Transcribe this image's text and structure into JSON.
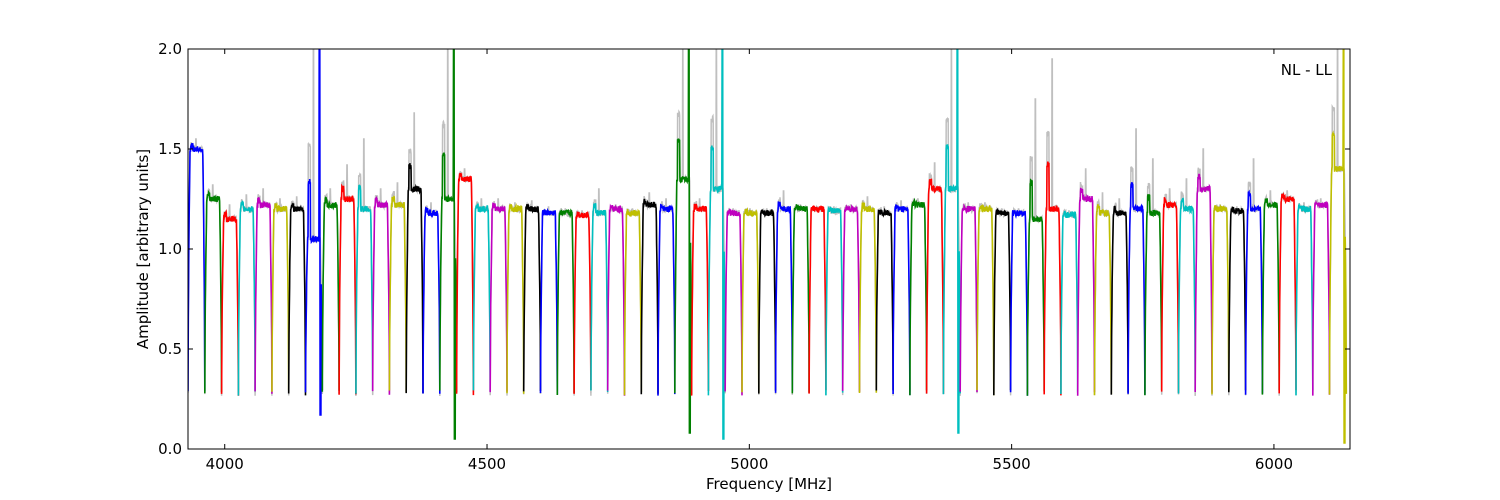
{
  "chart_data": {
    "type": "line",
    "title": "",
    "annotation": "NL - LL",
    "xlabel": "Frequency [MHz]",
    "ylabel": "Amplitude [arbitrary units]",
    "xlim": [
      3930,
      6145
    ],
    "ylim": [
      0.0,
      2.0
    ],
    "x_ticks": [
      4000,
      4500,
      5000,
      5500,
      6000
    ],
    "x_tick_labels": [
      "4000",
      "4500",
      "5000",
      "5500",
      "6000"
    ],
    "y_ticks": [
      0.0,
      0.5,
      1.0,
      1.5,
      2.0
    ],
    "y_tick_labels": [
      "0.0",
      "0.5",
      "1.0",
      "1.5",
      "2.0"
    ],
    "grid": false,
    "legend": "none",
    "background_series_color": "#bfbfbf",
    "color_cycle": [
      "#0000ff",
      "#008000",
      "#ff0000",
      "#00bfbf",
      "#bf00bf",
      "#bfbf00",
      "#000000"
    ],
    "channel_width_mhz": 32,
    "channels": [
      {
        "start": 3930,
        "level": 1.5,
        "peak": 1.55
      },
      {
        "start": 3962,
        "level": 1.25,
        "peak": 1.32
      },
      {
        "start": 3994,
        "level": 1.15,
        "peak": 1.22
      },
      {
        "start": 4026,
        "level": 1.2,
        "peak": 1.27
      },
      {
        "start": 4058,
        "level": 1.22,
        "peak": 1.3
      },
      {
        "start": 4090,
        "level": 1.2,
        "peak": 1.25
      },
      {
        "start": 4122,
        "level": 1.2,
        "peak": 1.26
      },
      {
        "start": 4154,
        "level": 1.05,
        "peak": 2.0,
        "min": 0.17
      },
      {
        "start": 4186,
        "level": 1.22,
        "peak": 1.3
      },
      {
        "start": 4218,
        "level": 1.25,
        "peak": 1.42
      },
      {
        "start": 4250,
        "level": 1.2,
        "peak": 1.55
      },
      {
        "start": 4282,
        "level": 1.22,
        "peak": 1.3
      },
      {
        "start": 4314,
        "level": 1.22,
        "peak": 1.33
      },
      {
        "start": 4346,
        "level": 1.3,
        "peak": 1.68
      },
      {
        "start": 4378,
        "level": 1.18,
        "peak": 1.23
      },
      {
        "start": 4410,
        "level": 1.25,
        "peak": 2.0,
        "min": 0.05
      },
      {
        "start": 4442,
        "level": 1.35,
        "peak": 1.4
      },
      {
        "start": 4474,
        "level": 1.2,
        "peak": 1.25
      },
      {
        "start": 4506,
        "level": 1.2,
        "peak": 1.25
      },
      {
        "start": 4538,
        "level": 1.2,
        "peak": 1.23
      },
      {
        "start": 4570,
        "level": 1.2,
        "peak": 1.24
      },
      {
        "start": 4602,
        "level": 1.18,
        "peak": 1.21
      },
      {
        "start": 4634,
        "level": 1.18,
        "peak": 1.2
      },
      {
        "start": 4666,
        "level": 1.17,
        "peak": 1.19
      },
      {
        "start": 4698,
        "level": 1.18,
        "peak": 1.3
      },
      {
        "start": 4730,
        "level": 1.2,
        "peak": 1.22
      },
      {
        "start": 4762,
        "level": 1.18,
        "peak": 1.2
      },
      {
        "start": 4794,
        "level": 1.22,
        "peak": 1.28
      },
      {
        "start": 4826,
        "level": 1.2,
        "peak": 1.25
      },
      {
        "start": 4858,
        "level": 1.35,
        "peak": 2.0,
        "min": 0.08
      },
      {
        "start": 4890,
        "level": 1.2,
        "peak": 1.25
      },
      {
        "start": 4922,
        "level": 1.3,
        "peak": 2.0,
        "min": 0.05
      },
      {
        "start": 4954,
        "level": 1.18,
        "peak": 1.2
      },
      {
        "start": 4986,
        "level": 1.18,
        "peak": 1.2
      },
      {
        "start": 5018,
        "level": 1.18,
        "peak": 1.2
      },
      {
        "start": 5050,
        "level": 1.2,
        "peak": 1.29
      },
      {
        "start": 5082,
        "level": 1.2,
        "peak": 1.22
      },
      {
        "start": 5114,
        "level": 1.2,
        "peak": 1.21
      },
      {
        "start": 5146,
        "level": 1.19,
        "peak": 1.21
      },
      {
        "start": 5178,
        "level": 1.2,
        "peak": 1.22
      },
      {
        "start": 5210,
        "level": 1.2,
        "peak": 1.26
      },
      {
        "start": 5242,
        "level": 1.18,
        "peak": 1.21
      },
      {
        "start": 5274,
        "level": 1.2,
        "peak": 1.24
      },
      {
        "start": 5306,
        "level": 1.22,
        "peak": 1.25
      },
      {
        "start": 5338,
        "level": 1.3,
        "peak": 1.43
      },
      {
        "start": 5370,
        "level": 1.3,
        "peak": 2.0,
        "min": 0.08
      },
      {
        "start": 5402,
        "level": 1.2,
        "peak": 1.23
      },
      {
        "start": 5434,
        "level": 1.2,
        "peak": 1.23
      },
      {
        "start": 5466,
        "level": 1.18,
        "peak": 1.2
      },
      {
        "start": 5498,
        "level": 1.18,
        "peak": 1.2
      },
      {
        "start": 5530,
        "level": 1.15,
        "peak": 1.75
      },
      {
        "start": 5562,
        "level": 1.2,
        "peak": 1.95
      },
      {
        "start": 5594,
        "level": 1.17,
        "peak": 1.19
      },
      {
        "start": 5626,
        "level": 1.25,
        "peak": 1.4
      },
      {
        "start": 5658,
        "level": 1.18,
        "peak": 1.28
      },
      {
        "start": 5690,
        "level": 1.18,
        "peak": 1.25
      },
      {
        "start": 5722,
        "level": 1.2,
        "peak": 1.6
      },
      {
        "start": 5754,
        "level": 1.18,
        "peak": 1.45
      },
      {
        "start": 5786,
        "level": 1.22,
        "peak": 1.3
      },
      {
        "start": 5818,
        "level": 1.2,
        "peak": 1.35
      },
      {
        "start": 5850,
        "level": 1.3,
        "peak": 1.5
      },
      {
        "start": 5882,
        "level": 1.2,
        "peak": 1.22
      },
      {
        "start": 5914,
        "level": 1.19,
        "peak": 1.21
      },
      {
        "start": 5946,
        "level": 1.2,
        "peak": 1.45
      },
      {
        "start": 5978,
        "level": 1.22,
        "peak": 1.29
      },
      {
        "start": 6010,
        "level": 1.25,
        "peak": 1.29
      },
      {
        "start": 6042,
        "level": 1.2,
        "peak": 1.23
      },
      {
        "start": 6074,
        "level": 1.22,
        "peak": 1.25
      },
      {
        "start": 6106,
        "level": 1.4,
        "peak": 2.0,
        "min": 0.03
      }
    ]
  }
}
